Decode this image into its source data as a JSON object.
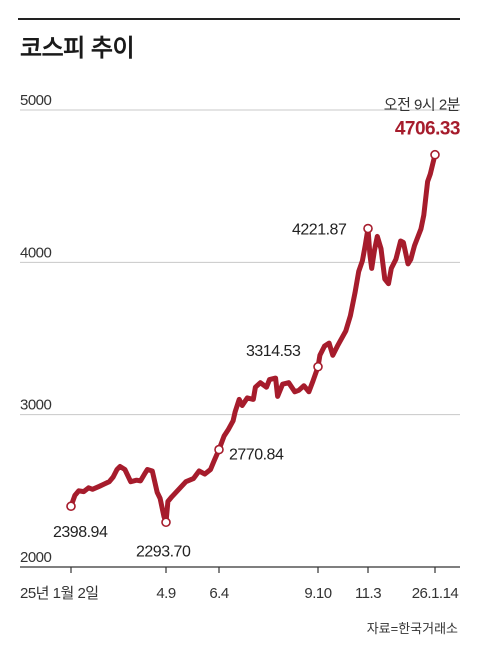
{
  "title": "코스피 추이",
  "source": "자료=한국거래소",
  "chart_data": {
    "type": "line",
    "title": "코스피 추이",
    "ylim": [
      2000,
      5000
    ],
    "y_ticks": [
      "5000",
      "4000",
      "3000",
      "2000"
    ],
    "y_tick_values": [
      5000,
      4000,
      3000,
      2000
    ],
    "grid": true,
    "x_ticks": [
      "25년 1월 2일",
      "4.9",
      "6.4",
      "9.10",
      "11.3",
      "26.1.14"
    ],
    "x_tick_dates": [
      "2025-01-02",
      "2025-04-09",
      "2025-06-04",
      "2025-09-10",
      "2025-11-03",
      "2026-01-14"
    ],
    "latest_label": "오전 9시 2분",
    "line_color": "#a61c2c",
    "series": [
      {
        "points": [
          [
            "2025-01-02",
            2398.94
          ],
          [
            "2025-01-06",
            2470
          ],
          [
            "2025-01-10",
            2500
          ],
          [
            "2025-01-15",
            2495
          ],
          [
            "2025-01-20",
            2520
          ],
          [
            "2025-01-24",
            2510
          ],
          [
            "2025-01-31",
            2530
          ],
          [
            "2025-02-05",
            2545
          ],
          [
            "2025-02-10",
            2560
          ],
          [
            "2025-02-14",
            2590
          ],
          [
            "2025-02-18",
            2640
          ],
          [
            "2025-02-21",
            2660
          ],
          [
            "2025-02-26",
            2640
          ],
          [
            "2025-03-04",
            2560
          ],
          [
            "2025-03-10",
            2570
          ],
          [
            "2025-03-14",
            2565
          ],
          [
            "2025-03-18",
            2610
          ],
          [
            "2025-03-21",
            2640
          ],
          [
            "2025-03-26",
            2630
          ],
          [
            "2025-03-31",
            2490
          ],
          [
            "2025-04-03",
            2450
          ],
          [
            "2025-04-07",
            2330
          ],
          [
            "2025-04-09",
            2293.7
          ],
          [
            "2025-04-11",
            2430
          ],
          [
            "2025-04-15",
            2460
          ],
          [
            "2025-04-18",
            2480
          ],
          [
            "2025-04-24",
            2520
          ],
          [
            "2025-04-30",
            2560
          ],
          [
            "2025-05-08",
            2580
          ],
          [
            "2025-05-14",
            2630
          ],
          [
            "2025-05-20",
            2610
          ],
          [
            "2025-05-26",
            2640
          ],
          [
            "2025-05-30",
            2700
          ],
          [
            "2025-06-04",
            2770.84
          ],
          [
            "2025-06-09",
            2860
          ],
          [
            "2025-06-13",
            2900
          ],
          [
            "2025-06-18",
            2960
          ],
          [
            "2025-06-20",
            3020
          ],
          [
            "2025-06-24",
            3100
          ],
          [
            "2025-06-27",
            3060
          ],
          [
            "2025-07-02",
            3110
          ],
          [
            "2025-07-08",
            3100
          ],
          [
            "2025-07-10",
            3180
          ],
          [
            "2025-07-15",
            3210
          ],
          [
            "2025-07-21",
            3180
          ],
          [
            "2025-07-24",
            3230
          ],
          [
            "2025-07-30",
            3240
          ],
          [
            "2025-08-01",
            3120
          ],
          [
            "2025-08-06",
            3200
          ],
          [
            "2025-08-12",
            3210
          ],
          [
            "2025-08-18",
            3150
          ],
          [
            "2025-08-22",
            3160
          ],
          [
            "2025-08-27",
            3190
          ],
          [
            "2025-09-01",
            3150
          ],
          [
            "2025-09-05",
            3220
          ],
          [
            "2025-09-10",
            3314.53
          ],
          [
            "2025-09-12",
            3390
          ],
          [
            "2025-09-17",
            3450
          ],
          [
            "2025-09-22",
            3470
          ],
          [
            "2025-09-26",
            3390
          ],
          [
            "2025-10-01",
            3450
          ],
          [
            "2025-10-10",
            3550
          ],
          [
            "2025-10-15",
            3650
          ],
          [
            "2025-10-20",
            3800
          ],
          [
            "2025-10-24",
            3940
          ],
          [
            "2025-10-28",
            4010
          ],
          [
            "2025-10-31",
            4110
          ],
          [
            "2025-11-03",
            4221.87
          ],
          [
            "2025-11-05",
            4050
          ],
          [
            "2025-11-07",
            3960
          ],
          [
            "2025-11-10",
            4080
          ],
          [
            "2025-11-13",
            4170
          ],
          [
            "2025-11-17",
            4090
          ],
          [
            "2025-11-21",
            3890
          ],
          [
            "2025-11-25",
            3860
          ],
          [
            "2025-11-28",
            3960
          ],
          [
            "2025-12-03",
            4020
          ],
          [
            "2025-12-08",
            4140
          ],
          [
            "2025-12-11",
            4130
          ],
          [
            "2025-12-16",
            3990
          ],
          [
            "2025-12-19",
            4020
          ],
          [
            "2025-12-23",
            4110
          ],
          [
            "2025-12-30",
            4220
          ],
          [
            "2026-01-02",
            4310
          ],
          [
            "2026-01-06",
            4530
          ],
          [
            "2026-01-09",
            4580
          ],
          [
            "2026-01-14",
            4706.33
          ]
        ]
      }
    ],
    "annotations": [
      {
        "date": "2025-01-02",
        "value": 2398.94,
        "label": "2398.94"
      },
      {
        "date": "2025-04-09",
        "value": 2293.7,
        "label": "2293.70"
      },
      {
        "date": "2025-06-04",
        "value": 2770.84,
        "label": "2770.84"
      },
      {
        "date": "2025-09-10",
        "value": 3314.53,
        "label": "3314.53"
      },
      {
        "date": "2025-11-03",
        "value": 4221.87,
        "label": "4221.87"
      },
      {
        "date": "2026-01-14",
        "value": 4706.33,
        "label": "4706.33"
      }
    ]
  }
}
